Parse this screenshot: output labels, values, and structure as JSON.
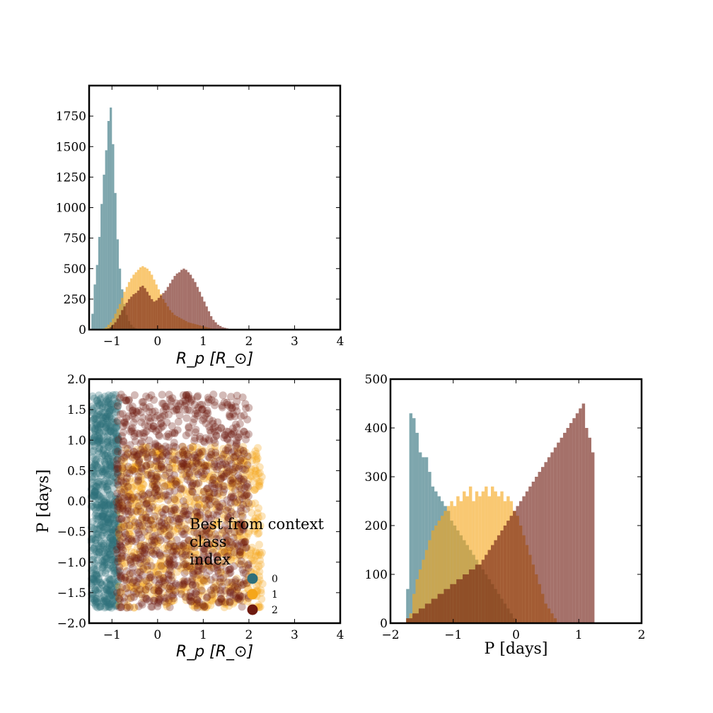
{
  "colors": {
    "class_0": "#2f6f7a",
    "class_1": "#f5a61b",
    "class_2": "#6e1a0f"
  },
  "chart_data": [
    {
      "id": "hist_rp",
      "type": "bar",
      "title": "",
      "xlabel": "R_p [R_⊙]",
      "ylabel": "",
      "xlim": [
        -1.5,
        4
      ],
      "ylim": [
        0,
        2000
      ],
      "xticks": [
        -1,
        0,
        1,
        2,
        3,
        4
      ],
      "yticks": [
        0,
        250,
        500,
        750,
        1000,
        1250,
        1500,
        1750
      ],
      "grid": false,
      "bin_width": 0.05,
      "series": [
        {
          "class": 0,
          "x_start": -1.45,
          "counts": [
            130,
            370,
            530,
            760,
            1030,
            1270,
            1470,
            1710,
            1820,
            1520,
            1120,
            740,
            500,
            330,
            210,
            120,
            70,
            40,
            20,
            10
          ]
        },
        {
          "class": 1,
          "x_start": -1.2,
          "counts": [
            10,
            20,
            40,
            60,
            90,
            130,
            170,
            210,
            260,
            310,
            350,
            390,
            420,
            450,
            470,
            490,
            510,
            520,
            510,
            500,
            480,
            450,
            410,
            370,
            330,
            290,
            250,
            220,
            190,
            160,
            140,
            120,
            110,
            100,
            90,
            80,
            70,
            60,
            55,
            50,
            45,
            40,
            35,
            30,
            25,
            20,
            15,
            10,
            8,
            5
          ]
        },
        {
          "class": 2,
          "x_start": -1.1,
          "counts": [
            10,
            20,
            40,
            60,
            90,
            120,
            160,
            190,
            220,
            250,
            270,
            290,
            300,
            320,
            350,
            360,
            340,
            310,
            280,
            250,
            230,
            240,
            260,
            280,
            300,
            320,
            350,
            380,
            410,
            440,
            460,
            470,
            490,
            500,
            490,
            470,
            450,
            420,
            390,
            350,
            310,
            270,
            230,
            190,
            150,
            110,
            80,
            60,
            40,
            30,
            20,
            15,
            10,
            5
          ]
        }
      ]
    },
    {
      "id": "scatter_rp_p",
      "type": "scatter",
      "title": "",
      "xlabel": "R_p [R_⊙]",
      "ylabel": "P [days]",
      "xlim": [
        -1.5,
        4
      ],
      "ylim": [
        -2,
        2
      ],
      "xticks": [
        -1,
        0,
        1,
        2,
        3,
        4
      ],
      "yticks": [
        -2.0,
        -1.5,
        -1.0,
        -0.5,
        0.0,
        0.5,
        1.0,
        1.5,
        2.0
      ],
      "grid": false,
      "series": [
        {
          "class": 0,
          "x_range": [
            -1.45,
            -0.85
          ],
          "y_range": [
            -1.75,
            1.75
          ]
        },
        {
          "class": 1,
          "x_range": [
            -0.85,
            2.3
          ],
          "y_range": [
            -1.75,
            0.9
          ]
        },
        {
          "class": 2,
          "x_range": [
            -0.9,
            2.0
          ],
          "y_range": [
            -1.75,
            1.75
          ]
        }
      ],
      "legend": {
        "title": "Best from context\nclass\nindex",
        "entries": [
          "0",
          "1",
          "2"
        ],
        "placement": "lower-right"
      }
    },
    {
      "id": "hist_p",
      "type": "bar",
      "title": "",
      "xlabel": "P [days]",
      "ylabel": "",
      "xlim": [
        -2,
        2
      ],
      "ylim": [
        0,
        500
      ],
      "xticks": [
        -2,
        -1,
        0,
        1,
        2
      ],
      "yticks": [
        0,
        100,
        200,
        300,
        400,
        500
      ],
      "grid": false,
      "bin_width": 0.05,
      "series": [
        {
          "class": 0,
          "x_start": -1.75,
          "counts": [
            70,
            430,
            420,
            390,
            350,
            340,
            340,
            310,
            280,
            270,
            260,
            250,
            240,
            230,
            210,
            200,
            190,
            180,
            170,
            160,
            150,
            140,
            130,
            120,
            110,
            100,
            90,
            80,
            70,
            60,
            50,
            40,
            30,
            20,
            10
          ]
        },
        {
          "class": 1,
          "x_start": -1.75,
          "counts": [
            10,
            20,
            60,
            90,
            110,
            130,
            150,
            170,
            190,
            200,
            210,
            220,
            230,
            240,
            250,
            240,
            260,
            250,
            270,
            260,
            280,
            250,
            270,
            260,
            270,
            280,
            260,
            280,
            270,
            260,
            270,
            250,
            260,
            250,
            230,
            220,
            200,
            180,
            160,
            140,
            120,
            100,
            80,
            60,
            40,
            30,
            20,
            10
          ]
        },
        {
          "class": 2,
          "x_start": -1.75,
          "counts": [
            10,
            10,
            20,
            20,
            30,
            30,
            40,
            40,
            50,
            50,
            60,
            60,
            70,
            70,
            80,
            80,
            90,
            90,
            100,
            100,
            110,
            110,
            120,
            120,
            130,
            140,
            150,
            160,
            170,
            180,
            190,
            200,
            210,
            220,
            230,
            240,
            250,
            260,
            270,
            280,
            290,
            300,
            310,
            320,
            330,
            340,
            350,
            360,
            370,
            380,
            390,
            400,
            410,
            420,
            430,
            440,
            450,
            400,
            380,
            350
          ]
        }
      ]
    }
  ]
}
